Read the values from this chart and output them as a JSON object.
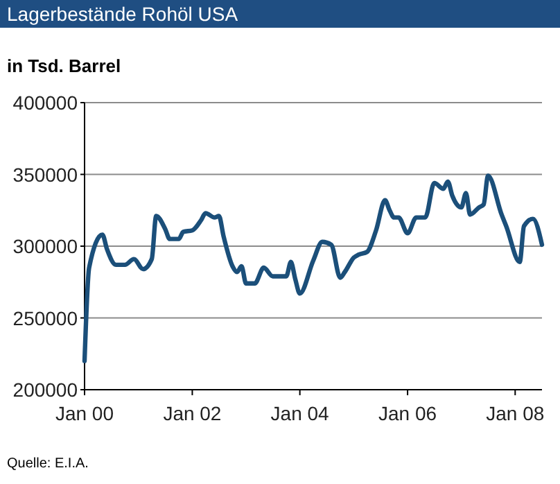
{
  "chart_data": {
    "type": "line",
    "title": "Lagerbestände Rohöl USA",
    "subtitle": "in Tsd. Barrel",
    "annotations": [
      "Quelle: E.I.A."
    ],
    "x": [
      "2000-01",
      "2000-02",
      "2000-05",
      "2000-06",
      "2000-08",
      "2000-10",
      "2000-12",
      "2001-02",
      "2001-04",
      "2001-05",
      "2001-07",
      "2001-08",
      "2001-10",
      "2001-11",
      "2002-01",
      "2002-03",
      "2002-04",
      "2002-06",
      "2002-07",
      "2002-08",
      "2002-10",
      "2002-11",
      "2002-12",
      "2003-01",
      "2003-03",
      "2003-05",
      "2003-07",
      "2003-10",
      "2003-11",
      "2003-12",
      "2004-01",
      "2004-04",
      "2004-06",
      "2004-08",
      "2004-10",
      "2004-11",
      "2005-01",
      "2005-02",
      "2005-04",
      "2005-06",
      "2005-08",
      "2005-09",
      "2005-10",
      "2005-11",
      "2006-01",
      "2006-03",
      "2006-05",
      "2006-07",
      "2006-09",
      "2006-10",
      "2006-11",
      "2007-01",
      "2007-02",
      "2007-03",
      "2007-05",
      "2007-06",
      "2007-07",
      "2007-10",
      "2007-11",
      "2008-02",
      "2008-03",
      "2008-05",
      "2008-07"
    ],
    "series": [
      {
        "color": "#1b4f7a",
        "values": [
          220000,
          285000,
          308000,
          298000,
          287000,
          287000,
          291000,
          284000,
          291000,
          321000,
          312000,
          305000,
          305000,
          310000,
          311000,
          318000,
          323000,
          320000,
          321000,
          307000,
          286000,
          282000,
          286000,
          274000,
          274000,
          285000,
          279000,
          279000,
          289000,
          277000,
          267000,
          290000,
          303000,
          301000,
          278000,
          282000,
          292000,
          294000,
          296000,
          311000,
          332000,
          325000,
          320000,
          320000,
          309000,
          320000,
          320000,
          344000,
          340000,
          345000,
          335000,
          327000,
          337000,
          322000,
          327000,
          329000,
          349000,
          322000,
          314000,
          289000,
          314000,
          319000,
          301000
        ]
      }
    ],
    "xlim": [
      "2000-01",
      "2008-07"
    ],
    "xticks": [
      {
        "value": "2000-01",
        "label": "Jan 00"
      },
      {
        "value": "2002-01",
        "label": "Jan 02"
      },
      {
        "value": "2004-01",
        "label": "Jan 04"
      },
      {
        "value": "2006-01",
        "label": "Jan 06"
      },
      {
        "value": "2008-01",
        "label": "Jan 08"
      }
    ],
    "ylim": [
      200000,
      400000
    ],
    "yticks": [
      200000,
      250000,
      300000,
      350000,
      400000
    ],
    "grid": "y",
    "marker": "none",
    "line_style": "solid"
  }
}
